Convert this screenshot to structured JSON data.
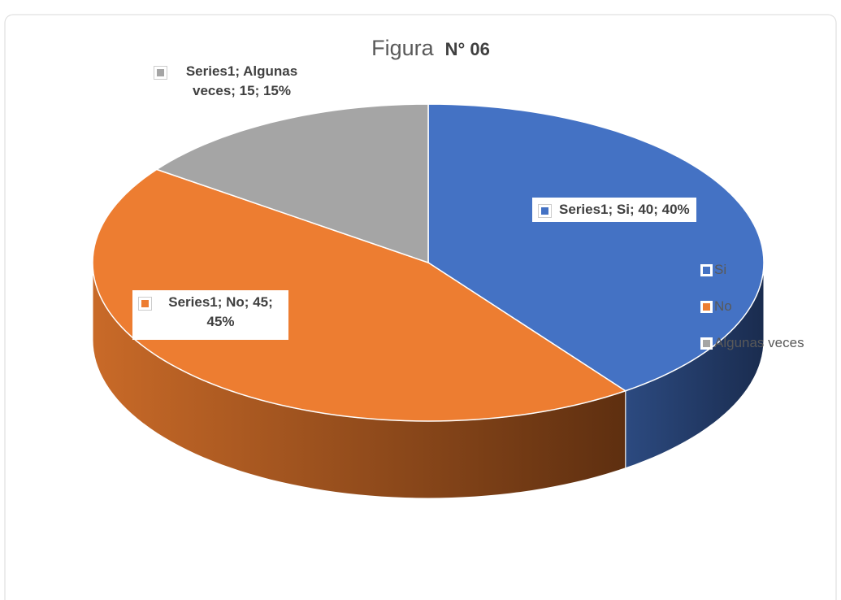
{
  "chart_data": {
    "type": "pie",
    "title": {
      "text": "Figura",
      "number": "N° 06"
    },
    "categories": [
      "Si",
      "No",
      "Algunas veces"
    ],
    "values": [
      40,
      45,
      15
    ],
    "value_labels": [
      "Series1; Si; 40; 40%",
      "Series1; No; 45; 45%",
      "Series1; Algunas veces; 15; 15%"
    ],
    "colors": [
      "#4472c4",
      "#ed7d31",
      "#a5a5a5"
    ],
    "legend": "right"
  }
}
